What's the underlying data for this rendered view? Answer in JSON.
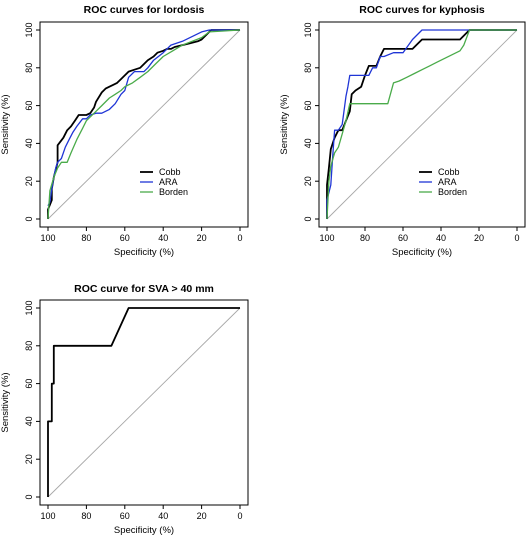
{
  "chart_data": [
    {
      "type": "line",
      "title": "ROC curves for lordosis",
      "xlabel": "Specificity (%)",
      "ylabel": "Sensitivity (%)",
      "xlim": [
        100,
        0
      ],
      "ylim": [
        0,
        100
      ],
      "x_ticks": [
        100,
        80,
        60,
        40,
        20,
        0
      ],
      "y_ticks": [
        0,
        20,
        40,
        60,
        80,
        100
      ],
      "reference_diagonal": true,
      "legend_position": "bottom-right",
      "series": [
        {
          "name": "Cobb",
          "color": "#000000",
          "x": [
            100,
            100,
            98,
            98,
            97,
            95,
            95,
            92,
            90,
            88,
            86,
            84,
            82,
            80,
            78,
            76,
            75,
            72,
            70,
            68,
            66,
            64,
            62,
            60,
            58,
            55,
            52,
            50,
            48,
            45,
            43,
            40,
            38,
            36,
            34,
            30,
            26,
            22,
            20,
            18,
            16,
            15,
            0
          ],
          "y": [
            0,
            5,
            10,
            16,
            22,
            30,
            39,
            43,
            47,
            49,
            52,
            55,
            55,
            55,
            56,
            59,
            62,
            67,
            69,
            70,
            71,
            72,
            74,
            76,
            78,
            79,
            80,
            82,
            84,
            86,
            88,
            89,
            90,
            90,
            91,
            92,
            93,
            94,
            95,
            97,
            99,
            100,
            100
          ]
        },
        {
          "name": "ARA",
          "color": "#1f35d6",
          "x": [
            100,
            99,
            98,
            97,
            96,
            95,
            93,
            91,
            89,
            87,
            85,
            82,
            80,
            78,
            75,
            72,
            70,
            68,
            65,
            62,
            60,
            58,
            55,
            52,
            50,
            48,
            45,
            40,
            36,
            30,
            24,
            20,
            16,
            0
          ],
          "y": [
            7,
            9,
            16,
            22,
            27,
            30,
            32,
            38,
            42,
            46,
            49,
            53,
            53,
            55,
            56,
            56,
            57,
            58,
            61,
            66,
            68,
            75,
            78,
            78,
            78,
            80,
            84,
            88,
            92,
            94,
            97,
            99,
            100,
            100
          ]
        },
        {
          "name": "Borden",
          "color": "#4aab4a",
          "x": [
            100,
            99,
            97,
            95,
            93,
            90,
            88,
            85,
            82,
            80,
            76,
            72,
            68,
            65,
            62,
            60,
            56,
            52,
            48,
            44,
            40,
            35,
            30,
            25,
            20,
            16,
            0
          ],
          "y": [
            0,
            15,
            22,
            27,
            30,
            30,
            35,
            42,
            48,
            52,
            56,
            60,
            64,
            66,
            68,
            70,
            72,
            75,
            78,
            82,
            86,
            89,
            92,
            94,
            96,
            99,
            100
          ]
        }
      ]
    },
    {
      "type": "line",
      "title": "ROC curves for kyphosis",
      "xlabel": "Specificity (%)",
      "ylabel": "Sensitivity (%)",
      "xlim": [
        100,
        0
      ],
      "ylim": [
        0,
        100
      ],
      "x_ticks": [
        100,
        80,
        60,
        40,
        20,
        0
      ],
      "y_ticks": [
        0,
        20,
        40,
        60,
        80,
        100
      ],
      "reference_diagonal": true,
      "legend_position": "bottom-right",
      "series": [
        {
          "name": "Cobb",
          "color": "#000000",
          "x": [
            100,
            100,
            99,
            98,
            96,
            94,
            92,
            90,
            88,
            87,
            85,
            82,
            80,
            78,
            76,
            74,
            72,
            70,
            68,
            66,
            64,
            62,
            60,
            55,
            50,
            45,
            40,
            35,
            30,
            25,
            20,
            0
          ],
          "y": [
            0,
            18,
            27,
            37,
            43,
            47,
            47,
            52,
            57,
            66,
            68,
            70,
            76,
            81,
            81,
            81,
            86,
            90,
            90,
            90,
            90,
            90,
            90,
            90,
            95,
            95,
            95,
            95,
            95,
            100,
            100,
            100
          ]
        },
        {
          "name": "ARA",
          "color": "#1f35d6",
          "x": [
            100,
            100,
            98,
            97,
            96,
            94,
            92,
            90,
            89,
            88,
            86,
            84,
            82,
            80,
            78,
            76,
            74,
            72,
            70,
            65,
            60,
            55,
            50,
            45,
            40,
            35,
            30,
            25,
            20,
            0
          ],
          "y": [
            0,
            10,
            18,
            33,
            47,
            47,
            50,
            65,
            70,
            76,
            76,
            76,
            76,
            76,
            76,
            80,
            80,
            86,
            86,
            88,
            88,
            95,
            100,
            100,
            100,
            100,
            100,
            100,
            100,
            100
          ]
        },
        {
          "name": "Borden",
          "color": "#4aab4a",
          "x": [
            100,
            99,
            98,
            96,
            94,
            92,
            90,
            88,
            86,
            84,
            80,
            76,
            72,
            68,
            65,
            62,
            58,
            54,
            50,
            46,
            42,
            38,
            34,
            30,
            28,
            25,
            20,
            0
          ],
          "y": [
            0,
            20,
            28,
            35,
            38,
            45,
            52,
            61,
            61,
            61,
            61,
            61,
            61,
            61,
            72,
            73,
            75,
            77,
            79,
            81,
            83,
            85,
            87,
            89,
            92,
            100,
            100,
            100
          ]
        }
      ]
    },
    {
      "type": "line",
      "title": "ROC curve for SVA > 40 mm",
      "xlabel": "Specificity (%)",
      "ylabel": "Sensitivity (%)",
      "xlim": [
        100,
        0
      ],
      "ylim": [
        0,
        100
      ],
      "x_ticks": [
        100,
        80,
        60,
        40,
        20,
        0
      ],
      "y_ticks": [
        0,
        20,
        40,
        60,
        80,
        100
      ],
      "reference_diagonal": true,
      "series": [
        {
          "color": "#000000",
          "x": [
            100,
            100,
            98,
            98,
            97,
            97,
            96,
            96,
            67,
            58,
            0
          ],
          "y": [
            0,
            40,
            40,
            60,
            60,
            80,
            80,
            80,
            80,
            100,
            100
          ]
        }
      ]
    }
  ]
}
